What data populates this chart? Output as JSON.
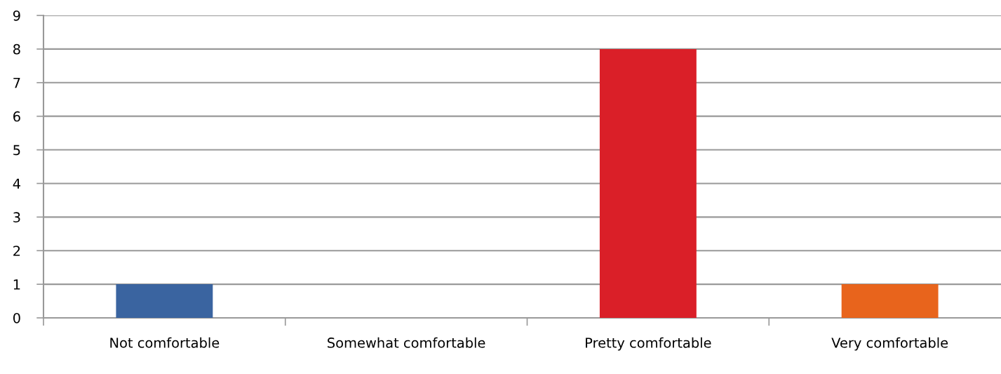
{
  "chart_data": {
    "type": "bar",
    "categories": [
      "Not comfortable",
      "Somewhat comfortable",
      "Pretty comfortable",
      "Very comfortable"
    ],
    "values": [
      1,
      0,
      8,
      1
    ],
    "colors": [
      "#3a64a0",
      null,
      "#da1f28",
      "#e8641c"
    ],
    "ylim": [
      0,
      9
    ],
    "yticks": [
      0,
      1,
      2,
      3,
      4,
      5,
      6,
      7,
      8,
      9
    ],
    "grid": "y"
  }
}
